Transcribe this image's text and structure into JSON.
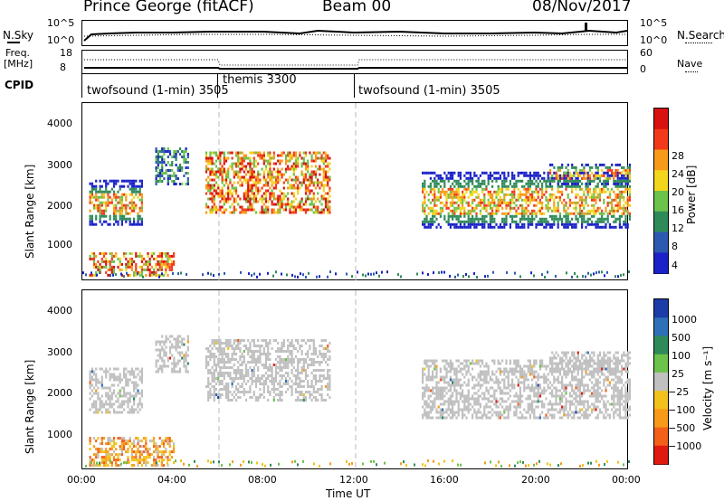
{
  "header": {
    "station": "Prince George (fitACF)",
    "beam": "Beam 00",
    "date": "08/Nov/2017"
  },
  "noise_panel": {
    "left_label": "N.Sky",
    "right_label": "N.Search",
    "left_ticks": [
      "10^5",
      "10^0"
    ],
    "right_ticks": [
      "10^5",
      "10^0"
    ]
  },
  "freq_panel": {
    "left_label_line1": "Freq.",
    "left_label_line2": "[MHz]",
    "right_label": "Nave",
    "left_ticks": [
      "18",
      "8"
    ],
    "right_ticks": [
      "60",
      "0"
    ]
  },
  "cpid_panel": {
    "label": "CPID",
    "segments": [
      {
        "label": "twofsound (1-min) 3505",
        "start_hour": 0
      },
      {
        "label": "themis 3300",
        "start_hour": 6
      },
      {
        "label": "twofsound (1-min) 3505",
        "start_hour": 12
      }
    ]
  },
  "x_axis": {
    "label": "Time UT",
    "ticks": [
      "00:00",
      "04:00",
      "08:00",
      "12:00",
      "16:00",
      "20:00",
      "00:00"
    ]
  },
  "chart_data": [
    {
      "type": "heatmap",
      "name": "power",
      "ylabel": "Slant Range [km]",
      "xlabel": "",
      "yticks": [
        "1000",
        "2000",
        "3000",
        "4000"
      ],
      "ylim": [
        180,
        4600
      ],
      "xlim": [
        0,
        24
      ],
      "colorbar_label": "Power [dB]",
      "colorbar_ticks": [
        "4",
        "8",
        "12",
        "16",
        "20",
        "24",
        "28"
      ],
      "colorbar_colors": [
        "#1a22c8",
        "#2c5ab0",
        "#2f8a5a",
        "#6cc24a",
        "#f2d61b",
        "#f79a1a",
        "#f23a1a",
        "#d8120f"
      ],
      "regions": [
        {
          "t0": 0.3,
          "t1": 2.6,
          "r0": 1600,
          "r1": 2700,
          "level": "mixed"
        },
        {
          "t0": 0.3,
          "t1": 4.0,
          "r0": 300,
          "r1": 900,
          "level": "high"
        },
        {
          "t0": 3.2,
          "t1": 4.6,
          "r0": 2600,
          "r1": 3500,
          "level": "low"
        },
        {
          "t0": 5.4,
          "t1": 10.9,
          "r0": 1900,
          "r1": 3400,
          "level": "high"
        },
        {
          "t0": 14.9,
          "t1": 24.0,
          "r0": 1500,
          "r1": 2900,
          "level": "mixed"
        },
        {
          "t0": 20.5,
          "t1": 24.0,
          "r0": 2600,
          "r1": 3100,
          "level": "mixed"
        }
      ]
    },
    {
      "type": "heatmap",
      "name": "velocity",
      "ylabel": "Slant Range [km]",
      "xlabel": "Time UT",
      "yticks": [
        "1000",
        "2000",
        "3000",
        "4000"
      ],
      "ylim": [
        180,
        4600
      ],
      "xlim": [
        0,
        24
      ],
      "colorbar_label": "Velocity [m s⁻¹]",
      "colorbar_ticks": [
        "1000",
        "500",
        "100",
        "25",
        "−25",
        "−100",
        "−500",
        "−1000"
      ],
      "colorbar_colors": [
        "#1c3ca8",
        "#2e70b8",
        "#2f8a5a",
        "#6cc24a",
        "#c0c0c0",
        "#f2c21b",
        "#f79a1a",
        "#f2601a",
        "#e01a12"
      ],
      "regions": [
        {
          "t0": 0.3,
          "t1": 2.6,
          "r0": 1600,
          "r1": 2700,
          "level": "ground"
        },
        {
          "t0": 0.3,
          "t1": 4.0,
          "r0": 300,
          "r1": 1000,
          "level": "negative"
        },
        {
          "t0": 3.2,
          "t1": 4.6,
          "r0": 2600,
          "r1": 3500,
          "level": "ground"
        },
        {
          "t0": 5.4,
          "t1": 10.9,
          "r0": 1900,
          "r1": 3400,
          "level": "ground"
        },
        {
          "t0": 14.9,
          "t1": 24.0,
          "r0": 1500,
          "r1": 2900,
          "level": "ground"
        },
        {
          "t0": 20.5,
          "t1": 24.0,
          "r0": 2600,
          "r1": 3100,
          "level": "ground"
        }
      ]
    }
  ]
}
